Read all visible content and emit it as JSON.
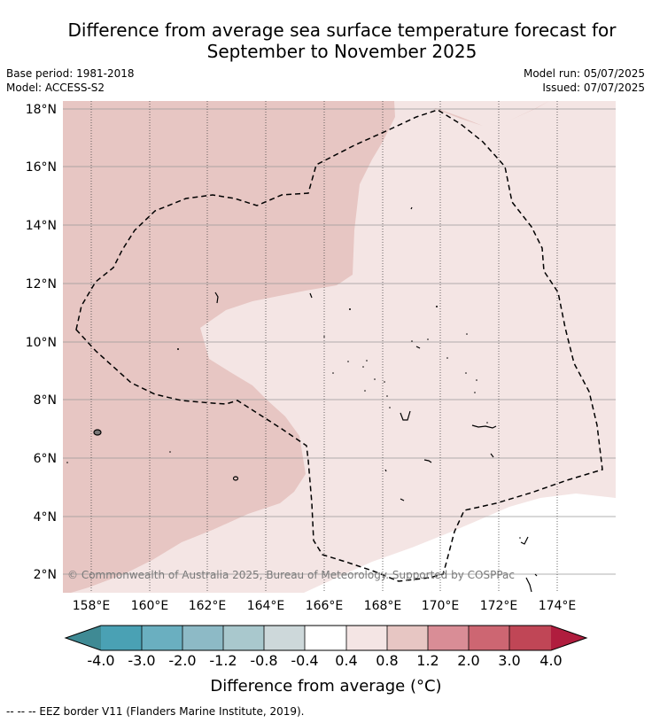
{
  "header": {
    "title_line1": "Difference from average sea surface temperature forecast for",
    "title_line2": "September to November 2025",
    "base_period": "Base period: 1981-2018",
    "model": "Model: ACCESS-S2",
    "model_run": "Model run: 05/07/2025",
    "issued": "Issued: 07/07/2025"
  },
  "map": {
    "lat_labels": [
      "18°N",
      "16°N",
      "14°N",
      "12°N",
      "10°N",
      "8°N",
      "6°N",
      "4°N",
      "2°N"
    ],
    "lon_labels": [
      "158°E",
      "160°E",
      "162°E",
      "164°E",
      "166°E",
      "168°E",
      "170°E",
      "172°E",
      "174°E"
    ],
    "copyright": "© Commonwealth of Australia 2025, Bureau of Meteorology. Supported by COSPPac",
    "fill_colors": {
      "band_0.8_1.2": "#e7c6c3",
      "band_0.4_0.8": "#f4e5e4",
      "band_-0.4_0.4": "#ffffff"
    }
  },
  "colorbar": {
    "tick_labels": [
      "-4.0",
      "-3.0",
      "-2.0",
      "-1.2",
      "-0.8",
      "-0.4",
      "0.4",
      "0.8",
      "1.2",
      "2.0",
      "3.0",
      "4.0"
    ],
    "colors": [
      "#3f8a94",
      "#4aa1b4",
      "#6aafc0",
      "#8dbac6",
      "#a9c8cd",
      "#cdd8da",
      "#ffffff",
      "#f4e5e4",
      "#e7c6c3",
      "#d98d96",
      "#cd6672",
      "#c04656",
      "#b01d3e"
    ],
    "label": "Difference from average (°C)"
  },
  "footer": {
    "legend": "--  --  -- EEZ border V11 (Flanders Marine Institute, 2019)."
  }
}
